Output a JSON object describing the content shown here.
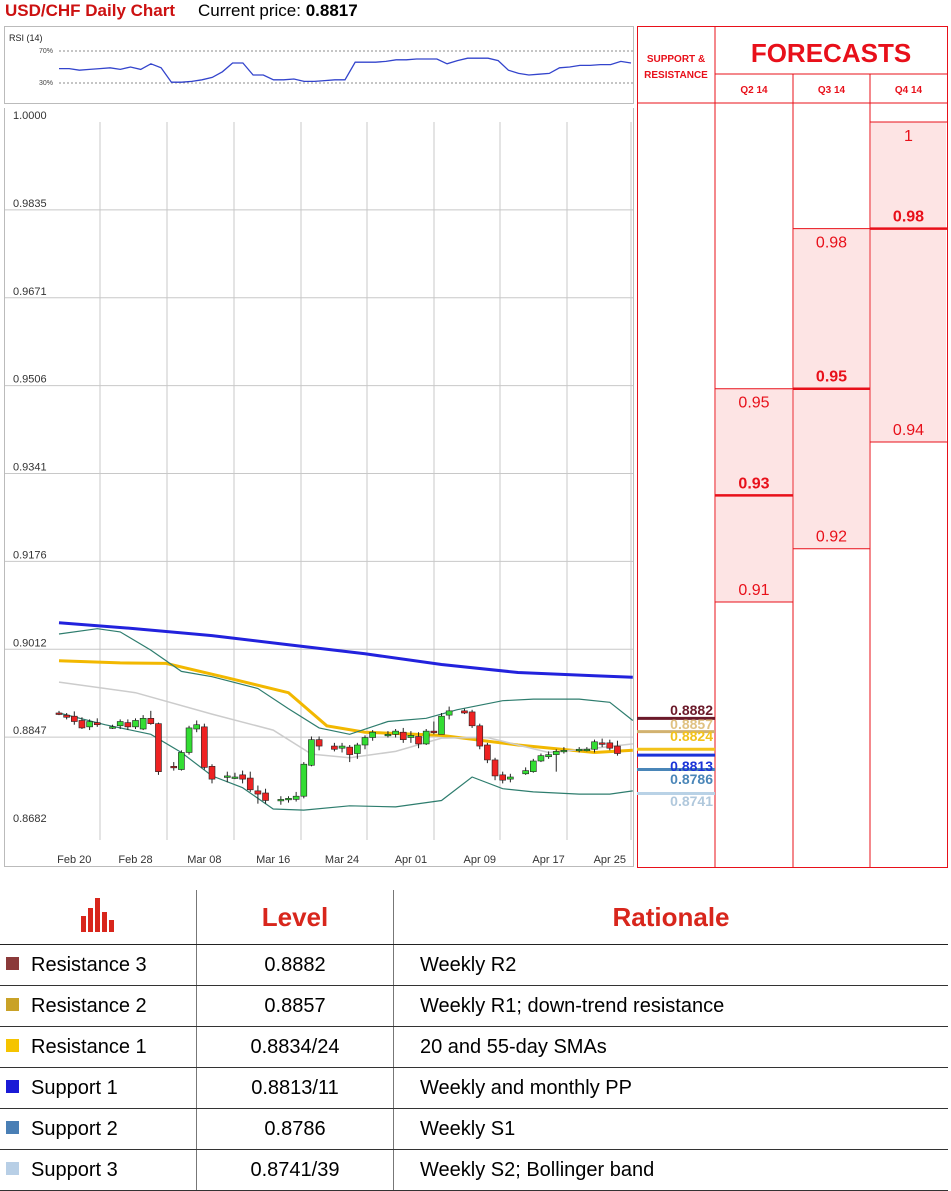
{
  "header": {
    "title": "USD/CHF Daily Chart",
    "price_label": "Current price: ",
    "price_value": "0.8817"
  },
  "rsi": {
    "label": "RSI (14)",
    "upper_label": "70%",
    "lower_label": "30%",
    "color": "#3344cc",
    "values": [
      48,
      48,
      46,
      47,
      48,
      49,
      47,
      50,
      47,
      54,
      49,
      31,
      31,
      32,
      34,
      37,
      44,
      55,
      55,
      40,
      40,
      34,
      34,
      35,
      32,
      32,
      33,
      34,
      34,
      56,
      56,
      56,
      57,
      59,
      59,
      60,
      60,
      60,
      54,
      58,
      61,
      61,
      61,
      58,
      46,
      42,
      40,
      41,
      42,
      49,
      50,
      52,
      52,
      53,
      53,
      57,
      55
    ]
  },
  "chart_data": {
    "type": "candlestick",
    "title": "USD/CHF Daily Chart",
    "ylim": [
      0.8682,
      1.0
    ],
    "y_ticks": [
      "1.0000",
      "0.9835",
      "0.9671",
      "0.9506",
      "0.9341",
      "0.9176",
      "0.9012",
      "0.8847",
      "0.8682"
    ],
    "x_ticks": [
      "Feb 20",
      "Feb 28",
      "Mar 08",
      "Mar 16",
      "Mar 24",
      "Apr 01",
      "Apr 09",
      "Apr 17",
      "Apr 25"
    ],
    "x_tick_index": [
      2,
      10,
      19,
      28,
      37,
      46,
      55,
      64,
      72
    ],
    "n_points": 76,
    "candles": [
      {
        "i": 0,
        "o": 0.8892,
        "h": 0.8896,
        "l": 0.8888,
        "c": 0.889
      },
      {
        "i": 1,
        "o": 0.8888,
        "h": 0.8892,
        "l": 0.888,
        "c": 0.8884
      },
      {
        "i": 2,
        "o": 0.8886,
        "h": 0.8895,
        "l": 0.887,
        "c": 0.8876
      },
      {
        "i": 3,
        "o": 0.8878,
        "h": 0.8884,
        "l": 0.8862,
        "c": 0.8864
      },
      {
        "i": 4,
        "o": 0.8866,
        "h": 0.888,
        "l": 0.886,
        "c": 0.8876
      },
      {
        "i": 5,
        "o": 0.8874,
        "h": 0.8882,
        "l": 0.8866,
        "c": 0.887
      },
      {
        "i": 7,
        "o": 0.8866,
        "h": 0.887,
        "l": 0.8862,
        "c": 0.8866
      },
      {
        "i": 8,
        "o": 0.8868,
        "h": 0.888,
        "l": 0.8862,
        "c": 0.8876
      },
      {
        "i": 9,
        "o": 0.8874,
        "h": 0.888,
        "l": 0.886,
        "c": 0.8866
      },
      {
        "i": 10,
        "o": 0.8866,
        "h": 0.8882,
        "l": 0.8862,
        "c": 0.8878
      },
      {
        "i": 11,
        "o": 0.8862,
        "h": 0.8888,
        "l": 0.886,
        "c": 0.8882
      },
      {
        "i": 12,
        "o": 0.8882,
        "h": 0.8896,
        "l": 0.887,
        "c": 0.8872
      },
      {
        "i": 13,
        "o": 0.8872,
        "h": 0.8874,
        "l": 0.8776,
        "c": 0.8782
      },
      {
        "i": 15,
        "o": 0.8792,
        "h": 0.88,
        "l": 0.8784,
        "c": 0.879
      },
      {
        "i": 16,
        "o": 0.8786,
        "h": 0.8822,
        "l": 0.8784,
        "c": 0.8818
      },
      {
        "i": 17,
        "o": 0.8818,
        "h": 0.8868,
        "l": 0.8814,
        "c": 0.8864
      },
      {
        "i": 18,
        "o": 0.8862,
        "h": 0.8878,
        "l": 0.8856,
        "c": 0.887
      },
      {
        "i": 19,
        "o": 0.8866,
        "h": 0.8872,
        "l": 0.8786,
        "c": 0.879
      },
      {
        "i": 20,
        "o": 0.8792,
        "h": 0.8796,
        "l": 0.876,
        "c": 0.8768
      },
      {
        "i": 22,
        "o": 0.8772,
        "h": 0.8782,
        "l": 0.8762,
        "c": 0.8774
      },
      {
        "i": 23,
        "o": 0.8772,
        "h": 0.878,
        "l": 0.8768,
        "c": 0.8772
      },
      {
        "i": 24,
        "o": 0.8776,
        "h": 0.8784,
        "l": 0.876,
        "c": 0.8768
      },
      {
        "i": 25,
        "o": 0.877,
        "h": 0.8782,
        "l": 0.8744,
        "c": 0.8748
      },
      {
        "i": 26,
        "o": 0.8746,
        "h": 0.8756,
        "l": 0.8722,
        "c": 0.874
      },
      {
        "i": 27,
        "o": 0.8742,
        "h": 0.875,
        "l": 0.8722,
        "c": 0.8728
      },
      {
        "i": 29,
        "o": 0.8728,
        "h": 0.8736,
        "l": 0.872,
        "c": 0.873
      },
      {
        "i": 30,
        "o": 0.8732,
        "h": 0.8736,
        "l": 0.8724,
        "c": 0.8732
      },
      {
        "i": 31,
        "o": 0.873,
        "h": 0.8744,
        "l": 0.8726,
        "c": 0.8736
      },
      {
        "i": 32,
        "o": 0.8736,
        "h": 0.88,
        "l": 0.8732,
        "c": 0.8796
      },
      {
        "i": 33,
        "o": 0.8794,
        "h": 0.8848,
        "l": 0.8792,
        "c": 0.8842
      },
      {
        "i": 34,
        "o": 0.8842,
        "h": 0.8848,
        "l": 0.8822,
        "c": 0.883
      },
      {
        "i": 36,
        "o": 0.883,
        "h": 0.8836,
        "l": 0.882,
        "c": 0.8824
      },
      {
        "i": 37,
        "o": 0.8826,
        "h": 0.8836,
        "l": 0.8818,
        "c": 0.883
      },
      {
        "i": 38,
        "o": 0.8828,
        "h": 0.8832,
        "l": 0.88,
        "c": 0.8814
      },
      {
        "i": 39,
        "o": 0.8816,
        "h": 0.8836,
        "l": 0.8806,
        "c": 0.8832
      },
      {
        "i": 40,
        "o": 0.8832,
        "h": 0.885,
        "l": 0.8824,
        "c": 0.8846
      },
      {
        "i": 41,
        "o": 0.8846,
        "h": 0.886,
        "l": 0.884,
        "c": 0.8856
      },
      {
        "i": 43,
        "o": 0.8852,
        "h": 0.8858,
        "l": 0.8846,
        "c": 0.8852
      },
      {
        "i": 44,
        "o": 0.8852,
        "h": 0.8862,
        "l": 0.8846,
        "c": 0.8858
      },
      {
        "i": 45,
        "o": 0.8856,
        "h": 0.8864,
        "l": 0.8836,
        "c": 0.8842
      },
      {
        "i": 46,
        "o": 0.8846,
        "h": 0.8858,
        "l": 0.8836,
        "c": 0.885
      },
      {
        "i": 47,
        "o": 0.8848,
        "h": 0.8856,
        "l": 0.8826,
        "c": 0.8834
      },
      {
        "i": 48,
        "o": 0.8834,
        "h": 0.8862,
        "l": 0.8832,
        "c": 0.8858
      },
      {
        "i": 49,
        "o": 0.8858,
        "h": 0.8876,
        "l": 0.8852,
        "c": 0.8856
      },
      {
        "i": 50,
        "o": 0.8852,
        "h": 0.8892,
        "l": 0.8852,
        "c": 0.8886
      },
      {
        "i": 51,
        "o": 0.8888,
        "h": 0.8904,
        "l": 0.888,
        "c": 0.8896
      },
      {
        "i": 53,
        "o": 0.8896,
        "h": 0.89,
        "l": 0.889,
        "c": 0.8892
      },
      {
        "i": 54,
        "o": 0.8894,
        "h": 0.8898,
        "l": 0.8864,
        "c": 0.8868
      },
      {
        "i": 55,
        "o": 0.8868,
        "h": 0.8872,
        "l": 0.8824,
        "c": 0.883
      },
      {
        "i": 56,
        "o": 0.8832,
        "h": 0.8836,
        "l": 0.8798,
        "c": 0.8804
      },
      {
        "i": 57,
        "o": 0.8804,
        "h": 0.8808,
        "l": 0.8766,
        "c": 0.8774
      },
      {
        "i": 58,
        "o": 0.8776,
        "h": 0.8782,
        "l": 0.876,
        "c": 0.8766
      },
      {
        "i": 59,
        "o": 0.8768,
        "h": 0.8778,
        "l": 0.8762,
        "c": 0.8772
      },
      {
        "i": 61,
        "o": 0.8778,
        "h": 0.879,
        "l": 0.8776,
        "c": 0.8784
      },
      {
        "i": 62,
        "o": 0.8782,
        "h": 0.8806,
        "l": 0.878,
        "c": 0.8802
      },
      {
        "i": 63,
        "o": 0.8802,
        "h": 0.8816,
        "l": 0.88,
        "c": 0.8812
      },
      {
        "i": 64,
        "o": 0.881,
        "h": 0.882,
        "l": 0.8806,
        "c": 0.8814
      },
      {
        "i": 65,
        "o": 0.8814,
        "h": 0.8824,
        "l": 0.8782,
        "c": 0.882
      },
      {
        "i": 66,
        "o": 0.882,
        "h": 0.8828,
        "l": 0.8816,
        "c": 0.8822
      },
      {
        "i": 68,
        "o": 0.8822,
        "h": 0.8828,
        "l": 0.8818,
        "c": 0.8824
      },
      {
        "i": 69,
        "o": 0.8824,
        "h": 0.8828,
        "l": 0.882,
        "c": 0.8824
      },
      {
        "i": 70,
        "o": 0.8824,
        "h": 0.8842,
        "l": 0.8818,
        "c": 0.8838
      },
      {
        "i": 71,
        "o": 0.8836,
        "h": 0.8844,
        "l": 0.8828,
        "c": 0.8834
      },
      {
        "i": 72,
        "o": 0.8836,
        "h": 0.8842,
        "l": 0.8822,
        "c": 0.8826
      },
      {
        "i": 73,
        "o": 0.883,
        "h": 0.884,
        "l": 0.8812,
        "c": 0.8816
      }
    ],
    "lines": [
      {
        "color": "#2222dd",
        "width": 3,
        "points": [
          [
            0,
            0.9061
          ],
          [
            10,
            0.905
          ],
          [
            20,
            0.9037
          ],
          [
            30,
            0.902
          ],
          [
            40,
            0.9003
          ],
          [
            50,
            0.8983
          ],
          [
            60,
            0.8968
          ],
          [
            70,
            0.8962
          ],
          [
            75,
            0.8959
          ]
        ]
      },
      {
        "color": "#f2b800",
        "width": 3,
        "points": [
          [
            0,
            0.899
          ],
          [
            8,
            0.8986
          ],
          [
            14,
            0.8985
          ],
          [
            22,
            0.8958
          ],
          [
            30,
            0.893
          ],
          [
            35,
            0.8868
          ],
          [
            40,
            0.8856
          ],
          [
            50,
            0.885
          ],
          [
            60,
            0.8832
          ],
          [
            70,
            0.8818
          ],
          [
            75,
            0.8822
          ]
        ]
      },
      {
        "color": "#cccccc",
        "width": 1.5,
        "points": [
          [
            0,
            0.895
          ],
          [
            10,
            0.893
          ],
          [
            20,
            0.889
          ],
          [
            28,
            0.886
          ],
          [
            33,
            0.8815
          ],
          [
            38,
            0.8808
          ],
          [
            44,
            0.882
          ],
          [
            50,
            0.8845
          ],
          [
            56,
            0.8846
          ],
          [
            64,
            0.8818
          ],
          [
            70,
            0.8826
          ],
          [
            75,
            0.8834
          ]
        ]
      },
      {
        "color": "#2e7d6e",
        "width": 1.2,
        "points": [
          [
            0,
            0.904
          ],
          [
            5,
            0.905
          ],
          [
            8,
            0.9044
          ],
          [
            12,
            0.901
          ],
          [
            16,
            0.897
          ],
          [
            20,
            0.896
          ],
          [
            26,
            0.8938
          ],
          [
            30,
            0.89
          ],
          [
            34,
            0.8864
          ],
          [
            38,
            0.8852
          ],
          [
            43,
            0.8876
          ],
          [
            48,
            0.8882
          ],
          [
            52,
            0.8898
          ],
          [
            58,
            0.8915
          ],
          [
            62,
            0.8918
          ],
          [
            68,
            0.8918
          ],
          [
            72,
            0.8912
          ],
          [
            75,
            0.8878
          ]
        ]
      },
      {
        "color": "#2e7d6e",
        "width": 1.2,
        "points": [
          [
            0,
            0.8892
          ],
          [
            6,
            0.887
          ],
          [
            12,
            0.8852
          ],
          [
            16,
            0.8818
          ],
          [
            20,
            0.8774
          ],
          [
            24,
            0.8752
          ],
          [
            28,
            0.8712
          ],
          [
            32,
            0.871
          ],
          [
            38,
            0.8718
          ],
          [
            44,
            0.8716
          ],
          [
            50,
            0.8728
          ],
          [
            54,
            0.8772
          ],
          [
            58,
            0.875
          ],
          [
            62,
            0.8744
          ],
          [
            68,
            0.874
          ],
          [
            72,
            0.874
          ],
          [
            75,
            0.8746
          ]
        ]
      }
    ],
    "support_resistance": [
      {
        "label": "0.8882",
        "value": 0.8882,
        "color": "#6b1a2a",
        "text_color": "#6b1a2a"
      },
      {
        "label": "0.8857",
        "value": 0.8857,
        "color": "#d2b270",
        "text_color": "#e0c282"
      },
      {
        "label": "0.8824",
        "value": 0.8824,
        "color": "#f2c21a",
        "text_color": "#f2c21a"
      },
      {
        "label": "0.8813",
        "value": 0.8813,
        "color": "#1b34d8",
        "text_color": "#1b34d8"
      },
      {
        "label": "0.8786",
        "value": 0.8786,
        "color": "#4a86b8",
        "text_color": "#4a86b8"
      },
      {
        "label": "0.8741",
        "value": 0.8741,
        "color": "#b9d2e6",
        "text_color": "#b0c8dc"
      }
    ],
    "forecasts": [
      {
        "quarter": "Q2 14",
        "low": "0.91",
        "mid": "0.93",
        "high": "0.95",
        "low_v": 0.91,
        "mid_v": 0.93,
        "high_v": 0.95
      },
      {
        "quarter": "Q3 14",
        "low": "0.92",
        "mid": "0.95",
        "high": "0.98",
        "low_v": 0.92,
        "mid_v": 0.95,
        "high_v": 0.98
      },
      {
        "quarter": "Q4 14",
        "low": "0.94",
        "mid": "0.98",
        "high": "1",
        "low_v": 0.94,
        "mid_v": 0.98,
        "high_v": 1.0
      }
    ]
  },
  "forecast_panel": {
    "sr_header": "SUPPORT & RESISTANCE",
    "title": "FORECASTS",
    "accent": "#e8101a",
    "band_fill": "#fde4e4"
  },
  "levels_table": {
    "headers": [
      "Level",
      "Rationale"
    ],
    "rows": [
      {
        "name": "Resistance 3",
        "level": "0.8882",
        "rationale": "Weekly R2",
        "swatch": "#8b3a3a"
      },
      {
        "name": "Resistance 2",
        "level": "0.8857",
        "rationale": "Weekly R1; down-trend resistance",
        "swatch": "#c9a227"
      },
      {
        "name": "Resistance 1",
        "level": "0.8834/24",
        "rationale": "20 and 55-day SMAs",
        "swatch": "#f5c400"
      },
      {
        "name": "Support 1",
        "level": "0.8813/11",
        "rationale": "Weekly and monthly PP",
        "swatch": "#1a1ad6"
      },
      {
        "name": "Support 2",
        "level": "0.8786",
        "rationale": "Weekly S1",
        "swatch": "#4a7fb5"
      },
      {
        "name": "Support 3",
        "level": "0.8741/39",
        "rationale": "Weekly S2; Bollinger band",
        "swatch": "#b8cfe6"
      }
    ]
  }
}
